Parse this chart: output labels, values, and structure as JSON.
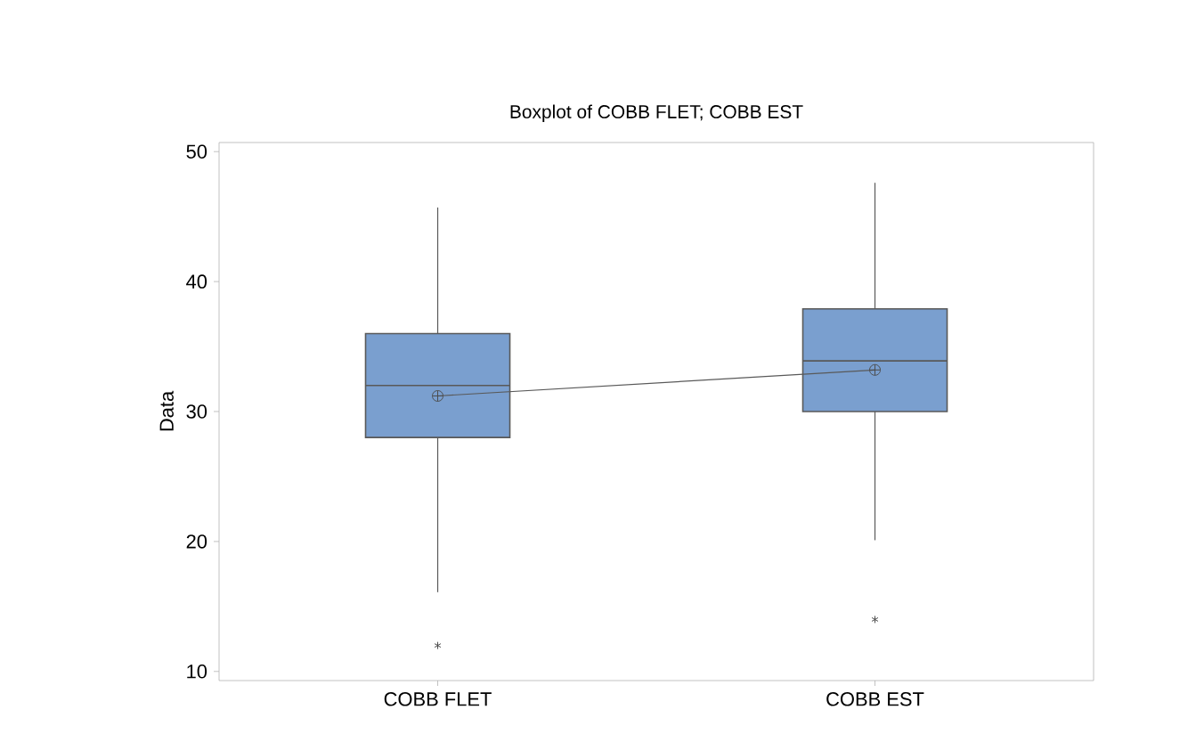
{
  "chart_data": {
    "type": "box",
    "title": "Boxplot of COBB FLET; COBB EST",
    "ylabel": "Data",
    "categories": [
      "COBB FLET",
      "COBB EST"
    ],
    "boxes": [
      {
        "low": 16.1,
        "q1": 28.0,
        "median": 32.0,
        "q3": 36.0,
        "high": 45.7,
        "mean": 31.2,
        "outliers": [
          12.0
        ]
      },
      {
        "low": 20.1,
        "q1": 30.0,
        "median": 33.9,
        "q3": 37.9,
        "high": 47.6,
        "mean": 33.2,
        "outliers": [
          14.0
        ]
      }
    ],
    "color": "#7a9fcf",
    "series": [
      {
        "type": "line",
        "color": "#595959",
        "values": [
          31.2,
          33.2
        ],
        "marker": "none"
      }
    ],
    "ylim": [
      9.3,
      50.7
    ],
    "yticks": [
      10,
      20,
      30,
      40,
      50
    ]
  }
}
